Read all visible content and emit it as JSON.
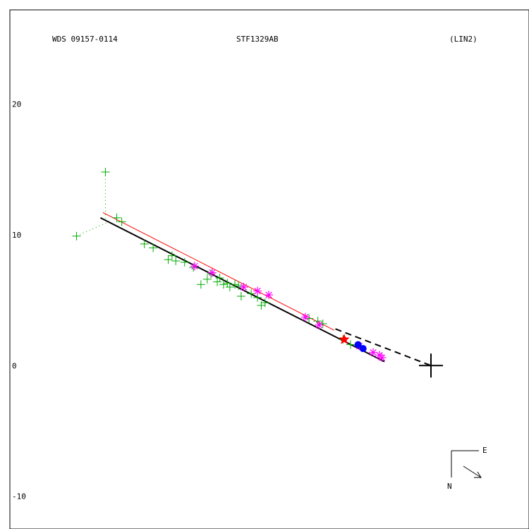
{
  "header": {
    "left": "WDS 09157-0114",
    "center": "STF1329AB",
    "right": "(LIN2)"
  },
  "compass": {
    "east": "E",
    "north": "N"
  },
  "colors": {
    "green": "#00aa00",
    "magenta": "#ff00ff",
    "red": "#ff0000",
    "blue": "#0000ff",
    "red_fit": "#ff0000",
    "black": "#000000"
  },
  "chart_data": {
    "type": "scatter",
    "title": "STF1329AB",
    "xlim": [
      -26.5,
      14.8
    ],
    "ylim": [
      -12.5,
      27.2
    ],
    "yticks": [
      {
        "value": 20,
        "label": "20"
      },
      {
        "value": 10,
        "label": "10"
      },
      {
        "value": 0,
        "label": "0"
      },
      {
        "value": -10,
        "label": "-10"
      }
    ],
    "primary": {
      "x": 7.0,
      "y": 0.0
    },
    "micrometer": [
      [
        -21.2,
        9.9
      ],
      [
        -18.9,
        14.8
      ],
      [
        -18.0,
        11.3
      ],
      [
        -17.6,
        11.0
      ],
      [
        -15.8,
        9.3
      ],
      [
        -15.1,
        9.0
      ],
      [
        -13.9,
        8.1
      ],
      [
        -13.6,
        8.4
      ],
      [
        -13.3,
        8.0
      ],
      [
        -12.6,
        7.9
      ],
      [
        -11.9,
        7.5
      ],
      [
        -11.3,
        6.2
      ],
      [
        -10.8,
        6.6
      ],
      [
        -10.5,
        7.0
      ],
      [
        -10.0,
        6.4
      ],
      [
        -9.8,
        6.7
      ],
      [
        -9.5,
        6.2
      ],
      [
        -9.2,
        6.3
      ],
      [
        -9.0,
        6.0
      ],
      [
        -8.6,
        6.2
      ],
      [
        -8.3,
        6.1
      ],
      [
        -8.1,
        5.3
      ],
      [
        -7.9,
        6.0
      ],
      [
        -7.3,
        5.5
      ],
      [
        -6.8,
        5.2
      ],
      [
        -6.5,
        4.6
      ],
      [
        -6.2,
        4.8
      ],
      [
        -2.7,
        3.6
      ],
      [
        -2.0,
        3.4
      ],
      [
        -1.6,
        3.2
      ],
      [
        0.0,
        2.0
      ],
      [
        0.6,
        1.6
      ]
    ],
    "interferometric": [
      [
        -11.8,
        7.6
      ],
      [
        -10.4,
        7.1
      ],
      [
        -7.9,
        6.0
      ],
      [
        -6.8,
        5.7
      ],
      [
        -5.9,
        5.4
      ],
      [
        -3.0,
        3.7
      ],
      [
        -1.9,
        3.1
      ],
      [
        1.3,
        1.5
      ],
      [
        2.4,
        1.0
      ],
      [
        2.9,
        0.8
      ],
      [
        3.1,
        0.6
      ]
    ],
    "speckle_red": [
      [
        0.1,
        2.0
      ]
    ],
    "speckle_blue": [
      [
        1.2,
        1.6
      ],
      [
        1.6,
        1.3
      ]
    ],
    "rejected_links": [
      [
        [
          -18.9,
          14.8
        ],
        [
          -18.9,
          11.1
        ]
      ],
      [
        [
          -21.2,
          9.9
        ],
        [
          -18.4,
          11.1
        ]
      ]
    ],
    "fit_black": [
      [
        -19.3,
        11.3
      ],
      [
        3.3,
        0.3
      ]
    ],
    "fit_red": [
      [
        -19.1,
        11.7
      ],
      [
        -0.7,
        2.7
      ]
    ],
    "periastron_line": [
      [
        -0.6,
        2.8
      ],
      [
        7.0,
        0.0
      ]
    ],
    "extra_fit": [
      [
        -0.8,
        2.9
      ],
      [
        3.3,
        0.3
      ]
    ]
  }
}
